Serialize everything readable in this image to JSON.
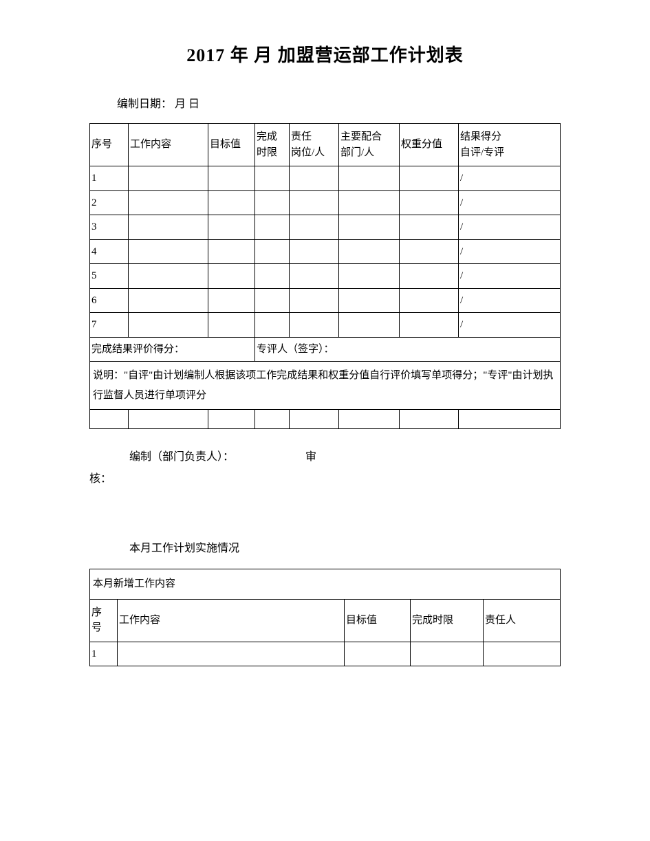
{
  "title": "2017 年  月  加盟营运部工作计划表",
  "meta_date": "编制日期：  月  日",
  "table1": {
    "columns": [
      "序号",
      "工作内容",
      "目标值",
      "完成\n时限",
      "责任\n岗位/人",
      "主要配合\n部门/人",
      "权重分值",
      "结果得分\n自评/专评"
    ],
    "col_widths": [
      "56px",
      "116px",
      "68px",
      "50px",
      "72px",
      "88px",
      "86px",
      "auto"
    ],
    "rows": [
      {
        "no": "1",
        "cells": [
          "",
          "",
          "",
          "",
          "",
          "",
          "/"
        ]
      },
      {
        "no": "2",
        "cells": [
          "",
          "",
          "",
          "",
          "",
          "",
          "/"
        ]
      },
      {
        "no": "3",
        "cells": [
          "",
          "",
          "",
          "",
          "",
          "",
          "/"
        ]
      },
      {
        "no": "4",
        "cells": [
          "",
          "",
          "",
          "",
          "",
          "",
          "/"
        ]
      },
      {
        "no": "5",
        "cells": [
          "",
          "",
          "",
          "",
          "",
          "",
          "/"
        ]
      },
      {
        "no": "6",
        "cells": [
          "",
          "",
          "",
          "",
          "",
          "",
          "/"
        ]
      },
      {
        "no": "7",
        "cells": [
          "",
          "",
          "",
          "",
          "",
          "",
          "/"
        ]
      }
    ],
    "score_label": "完成结果评价得分：",
    "reviewer_label": "专评人（签字）：",
    "note": "说明：\"自评\"由计划编制人根据该项工作完成结果和权重分值自行评价填写单项得分；\"专评\"由计划执行监督人员进行单项评分"
  },
  "signature": {
    "line1": "编制（部门负责人）：　　　　　　　审",
    "line2": "核："
  },
  "section2_heading": "本月工作计划实施情况",
  "table2": {
    "title": "本月新增工作内容",
    "columns": [
      "序\n号",
      "工作内容",
      "目标值",
      "完成时限",
      "责任人"
    ],
    "col_widths": [
      "40px",
      "auto",
      "96px",
      "106px",
      "112px"
    ],
    "rows": [
      {
        "no": "1",
        "cells": [
          "",
          "",
          "",
          ""
        ]
      }
    ]
  }
}
